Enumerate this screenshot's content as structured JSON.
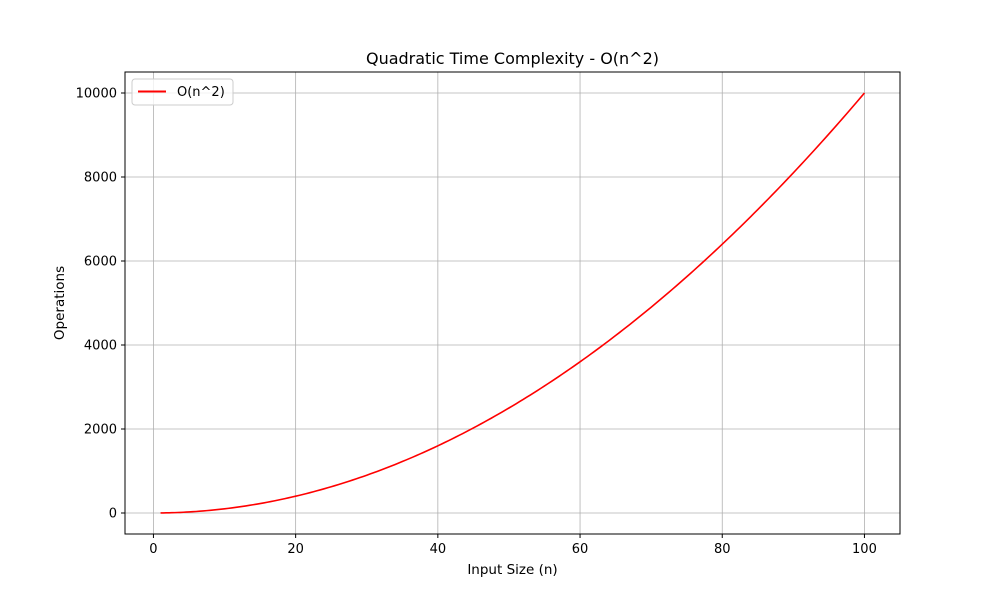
{
  "chart_data": {
    "type": "line",
    "title": "Quadratic Time Complexity - O(n^2)",
    "xlabel": "Input Size (n)",
    "ylabel": "Operations",
    "xlim": [
      -4,
      105
    ],
    "ylim": [
      -500,
      10500
    ],
    "x_ticks": [
      0,
      20,
      40,
      60,
      80,
      100
    ],
    "y_ticks": [
      0,
      2000,
      4000,
      6000,
      8000,
      10000
    ],
    "grid": true,
    "legend_position": "top-left",
    "series": [
      {
        "name": "O(n^2)",
        "color": "#ff0000",
        "x": [
          1,
          5,
          10,
          15,
          20,
          25,
          30,
          35,
          40,
          45,
          50,
          55,
          60,
          65,
          70,
          75,
          80,
          85,
          90,
          95,
          100
        ],
        "y": [
          1,
          25,
          100,
          225,
          400,
          625,
          900,
          1225,
          1600,
          2025,
          2500,
          3025,
          3600,
          4225,
          4900,
          5625,
          6400,
          7225,
          8100,
          9025,
          10000
        ]
      }
    ]
  }
}
